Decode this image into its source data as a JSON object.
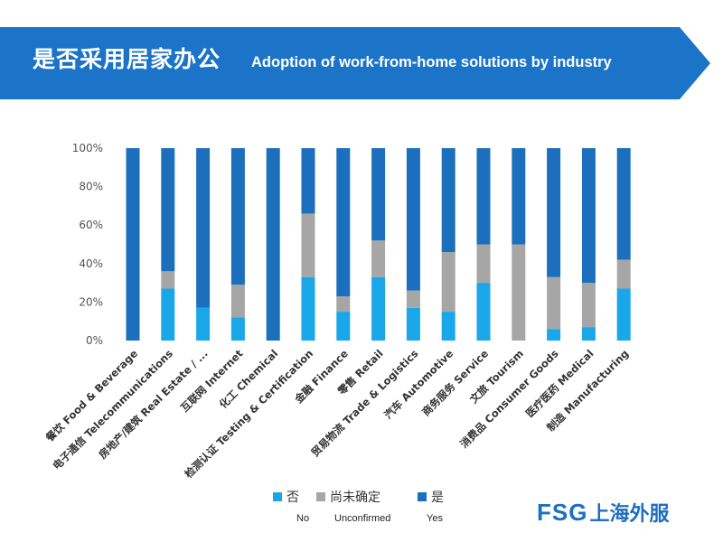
{
  "header": {
    "title_zh": "是否采用居家办公",
    "title_en": "Adoption of work-from-home solutions by industry"
  },
  "colors": {
    "banner": "#1c74c8",
    "no": "#1aa7ea",
    "unconfirmed": "#a6a6a6",
    "yes": "#1b6fbd"
  },
  "chart_data": {
    "type": "bar",
    "stacked": true,
    "categories": [
      "餐饮 Food & Beverage",
      "电子通信 Telecommunications",
      "房地产/建筑 Real Estate / ...",
      "互联网 Internet",
      "化工 Chemical",
      "检测认证 Testing & Certification",
      "金融 Finance",
      "零售 Retail",
      "贸易物流 Trade & Logistics",
      "汽车 Automotive",
      "商务服务 Service",
      "文旅 Tourism",
      "消费品 Consumer Goods",
      "医疗医药 Medical",
      "制造 Manufacturing"
    ],
    "series": [
      {
        "name": "否",
        "values": [
          0,
          27,
          17,
          12,
          0,
          33,
          15,
          33,
          17,
          15,
          30,
          0,
          6,
          7,
          27
        ]
      },
      {
        "name": "尚未确定",
        "values": [
          0,
          9,
          0,
          17,
          0,
          33,
          8,
          19,
          9,
          31,
          20,
          50,
          27,
          23,
          15
        ]
      },
      {
        "name": "是",
        "values": [
          100,
          64,
          83,
          71,
          100,
          34,
          77,
          48,
          74,
          54,
          50,
          50,
          67,
          70,
          58
        ]
      }
    ],
    "ylim": [
      0,
      100
    ],
    "yticks": [
      "0%",
      "20%",
      "40%",
      "60%",
      "80%",
      "100%"
    ],
    "legend_position": "bottom",
    "grid": false
  },
  "legend": {
    "items": [
      {
        "label_zh": "否",
        "label_en": "No"
      },
      {
        "label_zh": "尚未确定",
        "label_en": "Unconfirmed"
      },
      {
        "label_zh": "是",
        "label_en": "Yes"
      }
    ]
  },
  "logo": {
    "en": "FSG",
    "zh": "上海外服"
  }
}
